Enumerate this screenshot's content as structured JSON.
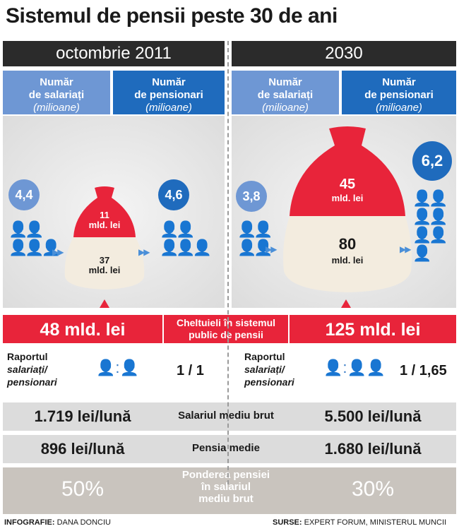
{
  "title": "Sistemul de pensii peste 30 de ani",
  "left": {
    "period": "octombrie 2011",
    "col_employees": "Număr",
    "col_employees_2": "de salariați",
    "col_employees_unit": "(milioane)",
    "col_pensioners": "Număr",
    "col_pensioners_2": "de pensionari",
    "col_pensioners_unit": "(milioane)",
    "employees": "4,4",
    "pensioners": "4,6",
    "bag_top": "11",
    "bag_top_unit": "mld. lei",
    "bag_bottom": "37",
    "bag_bottom_unit": "mld. lei",
    "total": "48 mld. lei",
    "ratio": "1 / 1",
    "salary": "1.719 lei/lună",
    "pension": "896 lei/lună",
    "share": "50%"
  },
  "right": {
    "period": "2030",
    "col_employees": "Număr",
    "col_employees_2": "de salariați",
    "col_employees_unit": "(milioane)",
    "col_pensioners": "Număr",
    "col_pensioners_2": "de pensionari",
    "col_pensioners_unit": "(milioane)",
    "employees": "3,8",
    "pensioners": "6,2",
    "bag_top": "45",
    "bag_top_unit": "mld. lei",
    "bag_bottom": "80",
    "bag_bottom_unit": "mld. lei",
    "total": "125 mld. lei",
    "ratio": "1 / 1,65",
    "salary": "5.500 lei/lună",
    "pension": "1.680 lei/lună",
    "share": "30%"
  },
  "center": {
    "expenses_1": "Cheltuieli în sistemul",
    "expenses_2": "public de pensii",
    "salary_label": "Salariul mediu brut",
    "pension_label": "Pensia medie",
    "share_1": "Ponderea pensiei",
    "share_2": "în salariul",
    "share_3": "mediu brut"
  },
  "raport": {
    "line1": "Raportul",
    "line2": "salariați/",
    "line3": "pensionari"
  },
  "footer": {
    "left_label": "INFOGRAFIE:",
    "left_value": "DANA DONCIU",
    "right_label": "SURSE:",
    "right_value": "EXPERT FORUM, MINISTERUL MUNCII"
  },
  "colors": {
    "red": "#e8243a",
    "blue_light": "#6e97d4",
    "blue_dark": "#1f6bbd",
    "grey": "#dcdcdc"
  },
  "icons": [
    "person-icon",
    "pensioner-icon",
    "money-bag-icon",
    "arrow-right-icon",
    "triangle-up-icon"
  ]
}
